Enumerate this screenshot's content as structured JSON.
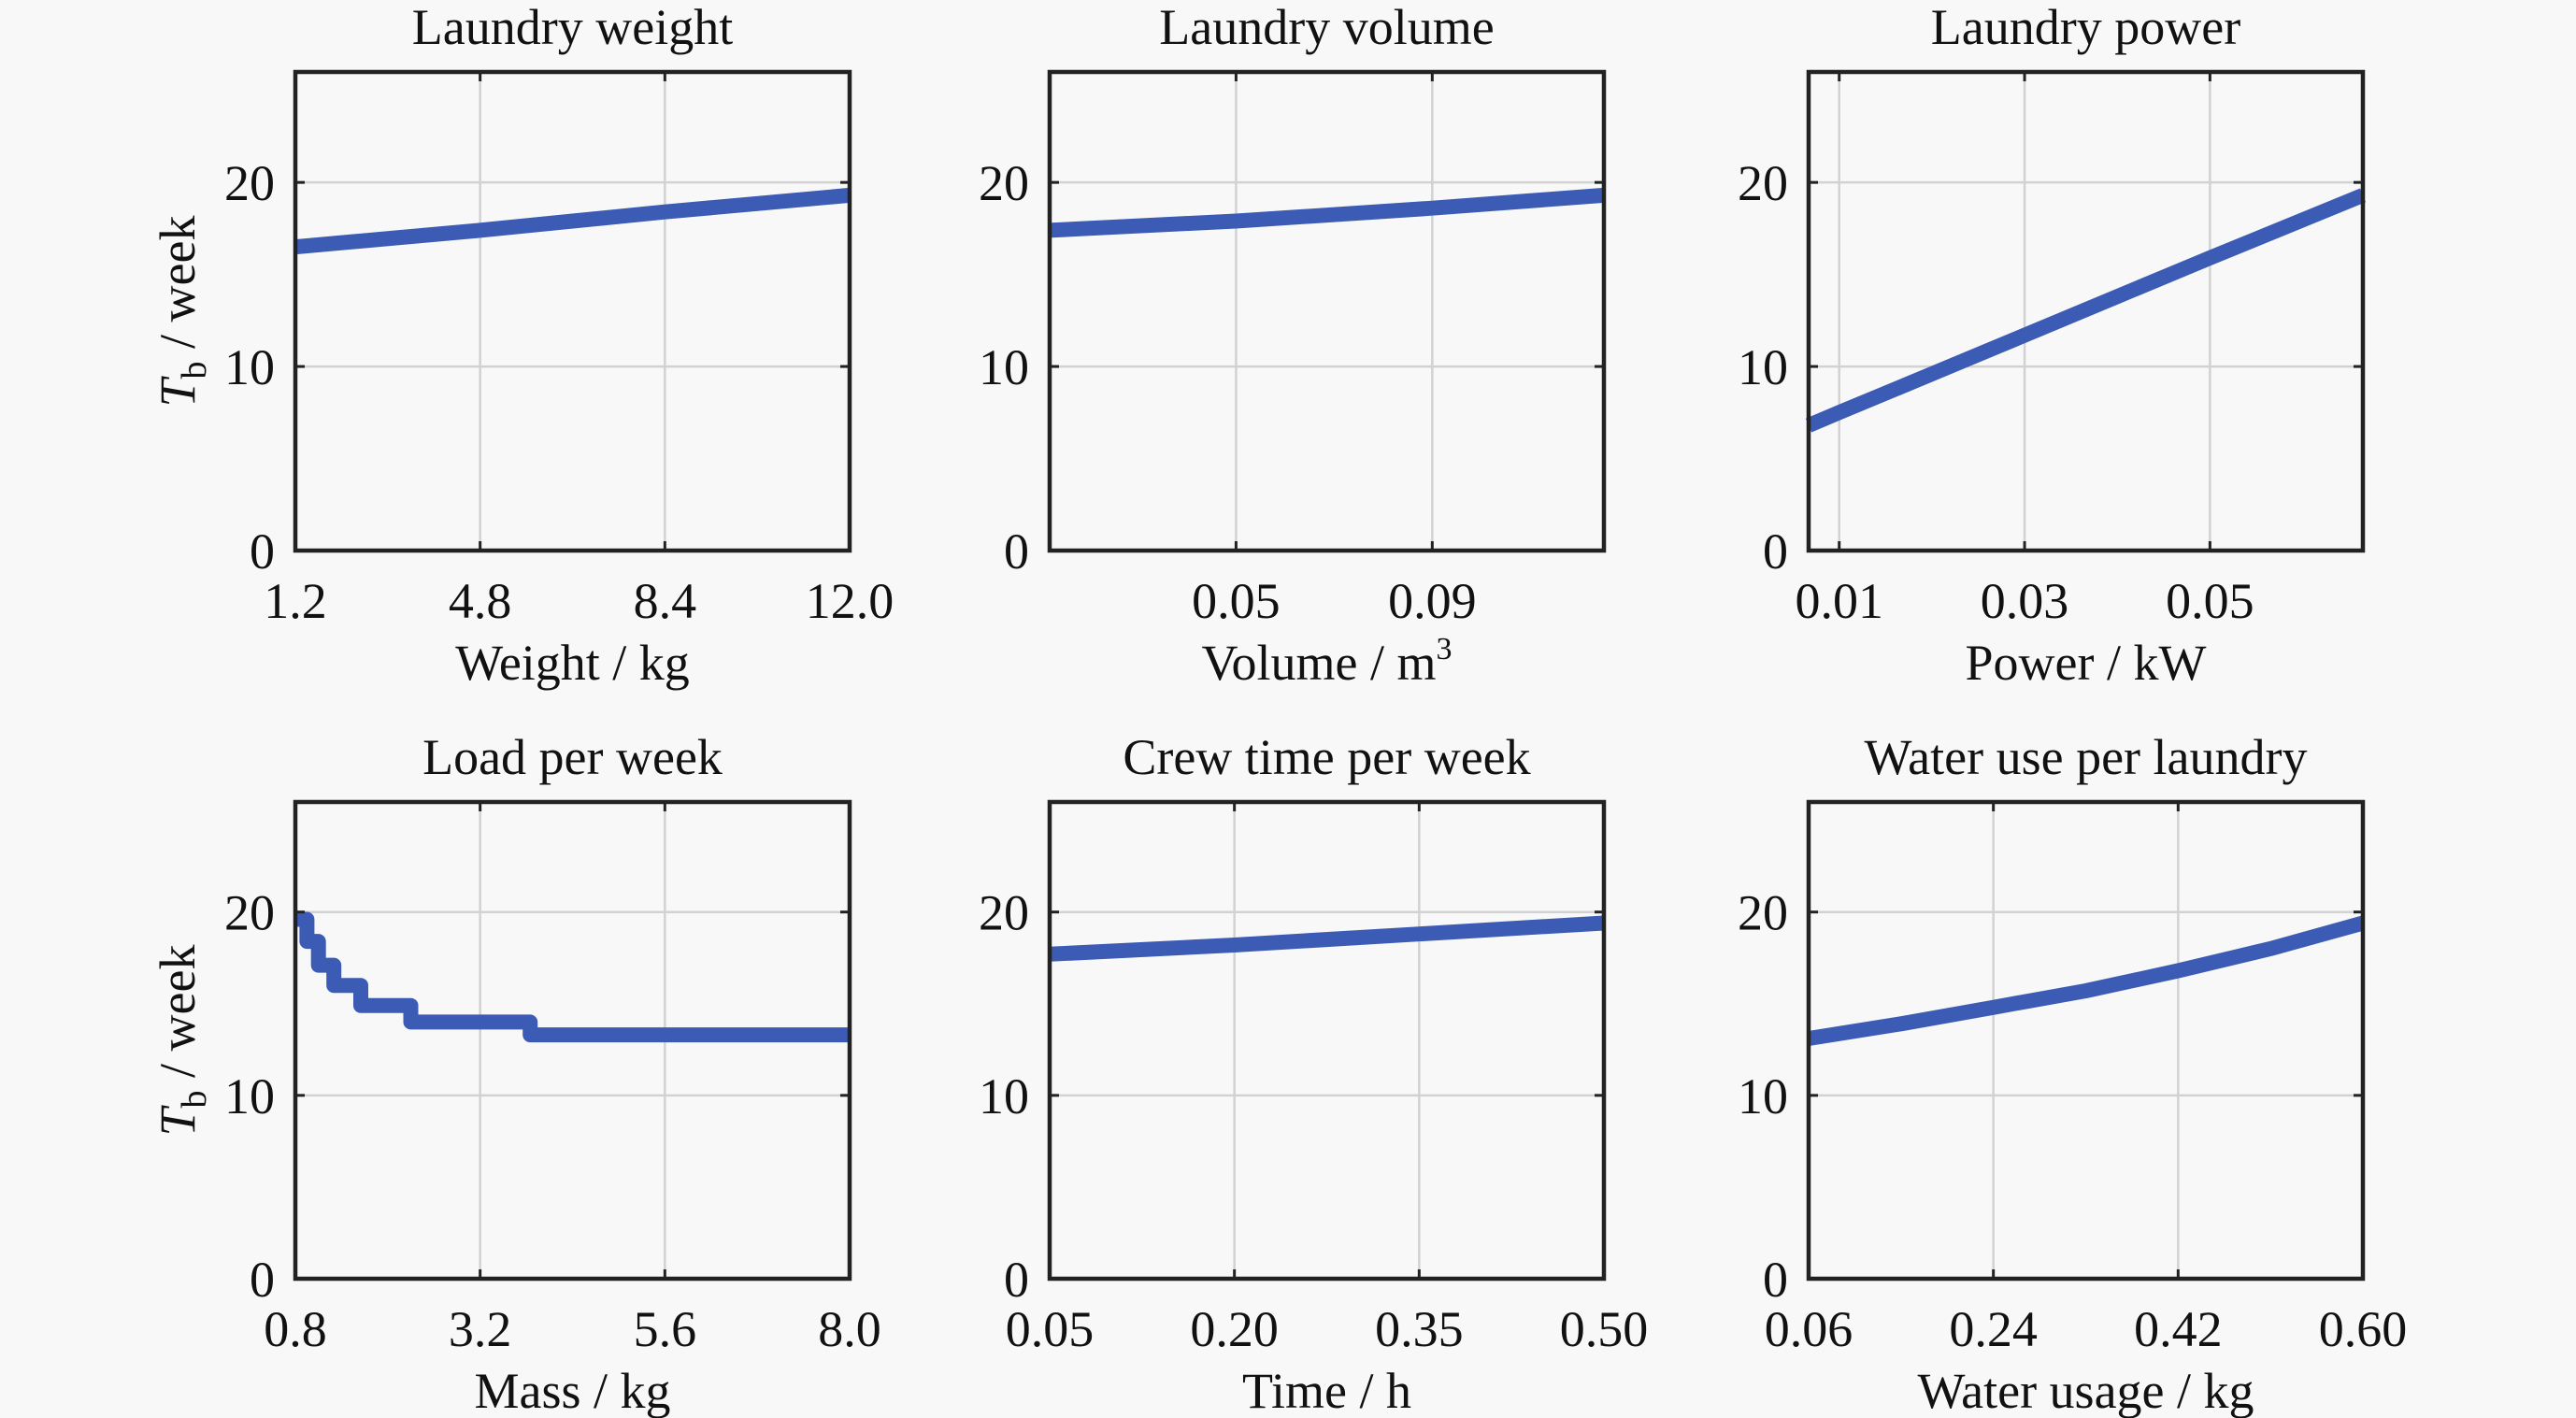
{
  "chart_data": [
    {
      "type": "line",
      "title": "Laundry weight",
      "xlabel": "Weight / kg",
      "ylabel": {
        "symbol": "T",
        "subscript": "b",
        "unit": " / week"
      },
      "xlim": [
        1.2,
        12.0
      ],
      "ylim": [
        0,
        26
      ],
      "xticks": [
        1.2,
        4.8,
        8.4,
        12.0
      ],
      "xtick_labels": [
        "1.2",
        "4.8",
        "8.4",
        "12.0"
      ],
      "yticks": [
        0,
        10,
        20
      ],
      "ytick_labels": [
        "0",
        "10",
        "20"
      ],
      "grid": true,
      "series": [
        {
          "name": "Tb",
          "x": [
            1.2,
            4.8,
            8.4,
            12.0
          ],
          "y": [
            16.5,
            17.4,
            18.4,
            19.3
          ]
        }
      ]
    },
    {
      "type": "line",
      "title": "Laundry volume",
      "xlabel": "Volume / m",
      "xlabel_superscript": "3",
      "ylabel": null,
      "xlim": [
        0.012,
        0.125
      ],
      "ylim": [
        0,
        26
      ],
      "xticks": [
        0.05,
        0.09
      ],
      "xtick_labels": [
        "0.05",
        "0.09"
      ],
      "yticks": [
        0,
        10,
        20
      ],
      "ytick_labels": [
        "0",
        "10",
        "20"
      ],
      "grid": true,
      "series": [
        {
          "name": "Tb",
          "x": [
            0.012,
            0.05,
            0.09,
            0.125
          ],
          "y": [
            17.4,
            17.9,
            18.6,
            19.3
          ]
        }
      ]
    },
    {
      "type": "line",
      "title": "Laundry power",
      "xlabel": "Power / kW",
      "ylabel": null,
      "xlim": [
        0.0067,
        0.0665
      ],
      "ylim": [
        0,
        26
      ],
      "xticks": [
        0.01,
        0.03,
        0.05
      ],
      "xtick_labels": [
        "0.01",
        "0.03",
        "0.05"
      ],
      "yticks": [
        0,
        10,
        20
      ],
      "ytick_labels": [
        "0",
        "10",
        "20"
      ],
      "grid": true,
      "series": [
        {
          "name": "Tb",
          "x": [
            0.0067,
            0.01,
            0.02,
            0.03,
            0.04,
            0.05,
            0.0665
          ],
          "y": [
            6.8,
            7.5,
            9.6,
            11.7,
            13.8,
            15.9,
            19.3
          ]
        }
      ]
    },
    {
      "type": "line",
      "title": "Load per week",
      "xlabel": "Mass / kg",
      "ylabel": {
        "symbol": "T",
        "subscript": "b",
        "unit": " / week"
      },
      "xlim": [
        0.8,
        8.0
      ],
      "ylim": [
        0,
        26
      ],
      "xticks": [
        0.8,
        3.2,
        5.6,
        8.0
      ],
      "xtick_labels": [
        "0.8",
        "3.2",
        "5.6",
        "8.0"
      ],
      "yticks": [
        0,
        10,
        20
      ],
      "ytick_labels": [
        "0",
        "10",
        "20"
      ],
      "grid": true,
      "series": [
        {
          "name": "Tb",
          "step": true,
          "x": [
            0.8,
            0.95,
            1.1,
            1.3,
            1.65,
            2.3,
            3.85,
            8.0
          ],
          "y": [
            19.6,
            18.4,
            17.1,
            16.0,
            14.9,
            14.0,
            13.3,
            13.3
          ]
        }
      ]
    },
    {
      "type": "line",
      "title": "Crew time per week",
      "xlabel": "Time / h",
      "ylabel": null,
      "xlim": [
        0.05,
        0.5
      ],
      "ylim": [
        0,
        26
      ],
      "xticks": [
        0.05,
        0.2,
        0.35,
        0.5
      ],
      "xtick_labels": [
        "0.05",
        "0.20",
        "0.35",
        "0.50"
      ],
      "yticks": [
        0,
        10,
        20
      ],
      "ytick_labels": [
        "0",
        "10",
        "20"
      ],
      "grid": true,
      "series": [
        {
          "name": "Tb",
          "x": [
            0.05,
            0.2,
            0.35,
            0.5
          ],
          "y": [
            17.7,
            18.2,
            18.8,
            19.4
          ]
        }
      ]
    },
    {
      "type": "line",
      "title": "Water use per laundry",
      "xlabel": "Water usage / kg",
      "ylabel": null,
      "xlim": [
        0.06,
        0.6
      ],
      "ylim": [
        0,
        26
      ],
      "xticks": [
        0.06,
        0.24,
        0.42,
        0.6
      ],
      "xtick_labels": [
        "0.06",
        "0.24",
        "0.42",
        "0.60"
      ],
      "yticks": [
        0,
        10,
        20
      ],
      "ytick_labels": [
        "0",
        "10",
        "20"
      ],
      "grid": true,
      "series": [
        {
          "name": "Tb",
          "x": [
            0.06,
            0.15,
            0.24,
            0.33,
            0.42,
            0.51,
            0.6
          ],
          "y": [
            13.1,
            13.9,
            14.8,
            15.7,
            16.8,
            18.0,
            19.4
          ]
        }
      ]
    }
  ],
  "colors": {
    "series": "#3b5bb5",
    "background": "#f8f8f8",
    "grid": "#d2d2d2",
    "axes": "#222222"
  }
}
